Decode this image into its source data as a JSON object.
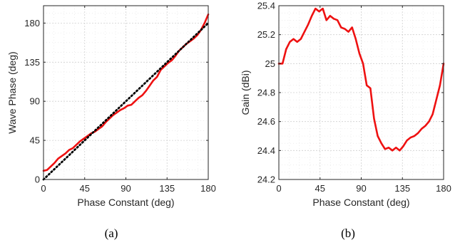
{
  "chart_data": [
    {
      "type": "line",
      "caption": "(a)",
      "xlabel": "Phase Constant (deg)",
      "ylabel": "Wave Phase (deg)",
      "xlim": [
        0,
        180
      ],
      "ylim": [
        0,
        200
      ],
      "xticks": [
        0,
        45,
        90,
        135,
        180
      ],
      "yticks": [
        0,
        45,
        90,
        135,
        180
      ],
      "minor_grid_step_x": 11.25,
      "minor_grid_step_y": 11.25,
      "grid": true,
      "series": [
        {
          "color": "#ee1111",
          "style": "solid",
          "x": [
            0,
            4,
            8,
            12,
            16,
            20,
            24,
            28,
            32,
            36,
            40,
            44,
            48,
            52,
            56,
            60,
            64,
            68,
            72,
            76,
            80,
            84,
            88,
            92,
            96,
            100,
            104,
            108,
            112,
            116,
            120,
            124,
            128,
            132,
            136,
            140,
            144,
            148,
            152,
            156,
            160,
            164,
            168,
            172,
            176,
            180
          ],
          "y": [
            10,
            11,
            15,
            19,
            24,
            27,
            30,
            34,
            36,
            40,
            44,
            47,
            50,
            53,
            55,
            58,
            61,
            66,
            70,
            74,
            77,
            80,
            82,
            85,
            86,
            90,
            94,
            97,
            102,
            108,
            114,
            118,
            126,
            130,
            134,
            137,
            142,
            148,
            152,
            156,
            159,
            162,
            166,
            172,
            180,
            190
          ]
        },
        {
          "color": "#000000",
          "style": "dotted",
          "x": [
            0,
            180
          ],
          "y": [
            0,
            180
          ]
        }
      ]
    },
    {
      "type": "line",
      "caption": "(b)",
      "xlabel": "Phase Constant (deg)",
      "ylabel": "Gain (dBi)",
      "xlim": [
        0,
        180
      ],
      "ylim": [
        24.2,
        25.4
      ],
      "xticks": [
        0,
        45,
        90,
        135,
        180
      ],
      "yticks": [
        24.2,
        24.4,
        24.6,
        24.8,
        25,
        25.2,
        25.4
      ],
      "ytick_labels": [
        "24.2",
        "24.4",
        "24.6",
        "24.8",
        "25",
        "25.2",
        "25.4"
      ],
      "minor_grid_step_x": 11.25,
      "minor_grid_step_y": 0.05,
      "grid": true,
      "series": [
        {
          "color": "#ee1111",
          "style": "solid",
          "x": [
            0,
            4,
            8,
            12,
            16,
            20,
            24,
            28,
            32,
            36,
            40,
            44,
            48,
            52,
            56,
            60,
            64,
            68,
            72,
            76,
            80,
            84,
            88,
            92,
            96,
            100,
            104,
            108,
            112,
            116,
            120,
            124,
            128,
            132,
            136,
            140,
            144,
            148,
            152,
            156,
            160,
            164,
            168,
            172,
            176,
            180
          ],
          "y": [
            25.0,
            25.0,
            25.1,
            25.15,
            25.17,
            25.15,
            25.17,
            25.22,
            25.27,
            25.33,
            25.38,
            25.36,
            25.38,
            25.3,
            25.33,
            25.31,
            25.3,
            25.25,
            25.24,
            25.22,
            25.25,
            25.17,
            25.07,
            25.0,
            24.85,
            24.83,
            24.62,
            24.5,
            24.45,
            24.41,
            24.42,
            24.4,
            24.42,
            24.4,
            24.43,
            24.47,
            24.49,
            24.5,
            24.52,
            24.55,
            24.57,
            24.6,
            24.65,
            24.75,
            24.85,
            25.0
          ]
        }
      ]
    }
  ]
}
